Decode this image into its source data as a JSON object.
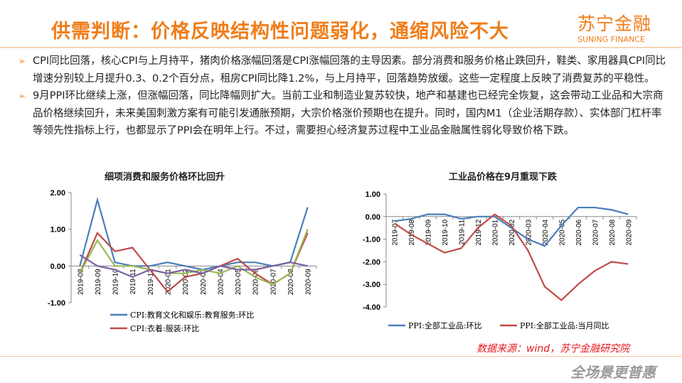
{
  "header": {
    "title": "供需判断：价格反映结构性问题弱化，通缩风险不大",
    "logo_cn": "苏宁金融",
    "logo_en": "SUNING FINANCE"
  },
  "paragraphs": [
    "CPI同比回落，核心CPI与上月持平，猪肉价格涨幅回落是CPI涨幅回落的主导因素。部分消费和服务价格止跌回升，鞋类、家用器具CPI同比增速分别较上月提升0.3、0.2个百分点，租房CPI同比降1.2%，与上月持平，回落趋势放缓。这些一定程度上反映了消费复苏的平稳性。",
    "9月PPI环比继续上涨，但涨幅回落，同比降幅则扩大。当前工业和制造业复苏较快，地产和基建也已经完全恢复，这会带动工业品和大宗商品价格继续回升，未来美国刺激方案有可能引发通胀预期，大宗价格涨价预期也在提升。同时，国内M1（企业活期存款）、实体部门杠杆率等领先性指标上行，也都显示了PPI会在明年上行。不过，需要担心经济复苏过程中工业品金融属性弱化导致价格下跌。"
  ],
  "bullet_icon": "arrow-right-icon",
  "chart_data": [
    {
      "type": "line",
      "title": "细项消费和服务价格环比回升",
      "ylim": [
        -1,
        2
      ],
      "yticks": [
        "2.00",
        "1.00",
        "0.00",
        "-1.00"
      ],
      "ytick_values": [
        2,
        1,
        0,
        -1
      ],
      "categories": [
        "2019-08",
        "2019-09",
        "2019-10",
        "2019-11",
        "2019-12",
        "2020-01",
        "2020-02",
        "2020-03",
        "2020-04",
        "2020-05",
        "2020-06",
        "2020-07",
        "2020-08",
        "2020-09"
      ],
      "legend": "bottom",
      "series": [
        {
          "name": "CPI:教育文化和娱乐:教育服务:环比",
          "color": "#4a7ebb",
          "values": [
            0,
            1.8,
            0.1,
            0,
            0,
            0.1,
            0,
            -0.1,
            0,
            0.1,
            0.1,
            0,
            0.1,
            1.6
          ]
        },
        {
          "name": "CPI:衣着:服装:环比",
          "color": "#be4b48",
          "values": [
            -0.2,
            0.9,
            0.4,
            0.5,
            -0.1,
            -0.7,
            -0.3,
            -0.2,
            0,
            0.2,
            -0.2,
            -0.5,
            -0.2,
            0.9
          ]
        },
        {
          "color": "#98b954",
          "values": [
            -0.2,
            0.7,
            0,
            0,
            -0.1,
            -0.2,
            -0.2,
            -0.1,
            -0.2,
            0,
            -0.3,
            -0.5,
            -0.2,
            1.0
          ]
        },
        {
          "color": "#7d60a0",
          "values": [
            0.3,
            0,
            -0.1,
            -0.3,
            -0.1,
            -0.2,
            -0.1,
            -0.2,
            0,
            -0.1,
            -0.1,
            0,
            0.1,
            0
          ]
        }
      ]
    },
    {
      "type": "line",
      "title": "工业品价格在9月重现下跌",
      "ylim": [
        -4,
        1
      ],
      "yticks": [
        "1.00",
        "0.00",
        "-1.00",
        "-2.00",
        "-3.00",
        "-4.00"
      ],
      "ytick_values": [
        1,
        0,
        -1,
        -2,
        -3,
        -4
      ],
      "categories": [
        "2019-07",
        "2019-08",
        "2019-09",
        "2019-10",
        "2019-11",
        "2019-12",
        "2020-01",
        "2020-02",
        "2020-03",
        "2020-04",
        "2020-05",
        "2020-06",
        "2020-07",
        "2020-08",
        "2020-09"
      ],
      "legend": "bottom",
      "series": [
        {
          "name": "PPI:全部工业品:环比",
          "color": "#4a7ebb",
          "values": [
            -0.2,
            -0.1,
            0.1,
            0.1,
            -0.1,
            0,
            0,
            -0.5,
            -1.0,
            -1.3,
            -0.4,
            0.4,
            0.4,
            0.3,
            0.1
          ]
        },
        {
          "name": "PPI:全部工业品:当月同比",
          "color": "#be4b48",
          "values": [
            -0.3,
            -0.8,
            -1.2,
            -1.6,
            -1.4,
            -0.5,
            0.1,
            -0.4,
            -1.5,
            -3.1,
            -3.7,
            -3.0,
            -2.4,
            -2.0,
            -2.1
          ]
        }
      ]
    }
  ],
  "footer": {
    "source": "数据来源：wind，苏宁金融研究院",
    "slogan": "全场景更普惠"
  }
}
